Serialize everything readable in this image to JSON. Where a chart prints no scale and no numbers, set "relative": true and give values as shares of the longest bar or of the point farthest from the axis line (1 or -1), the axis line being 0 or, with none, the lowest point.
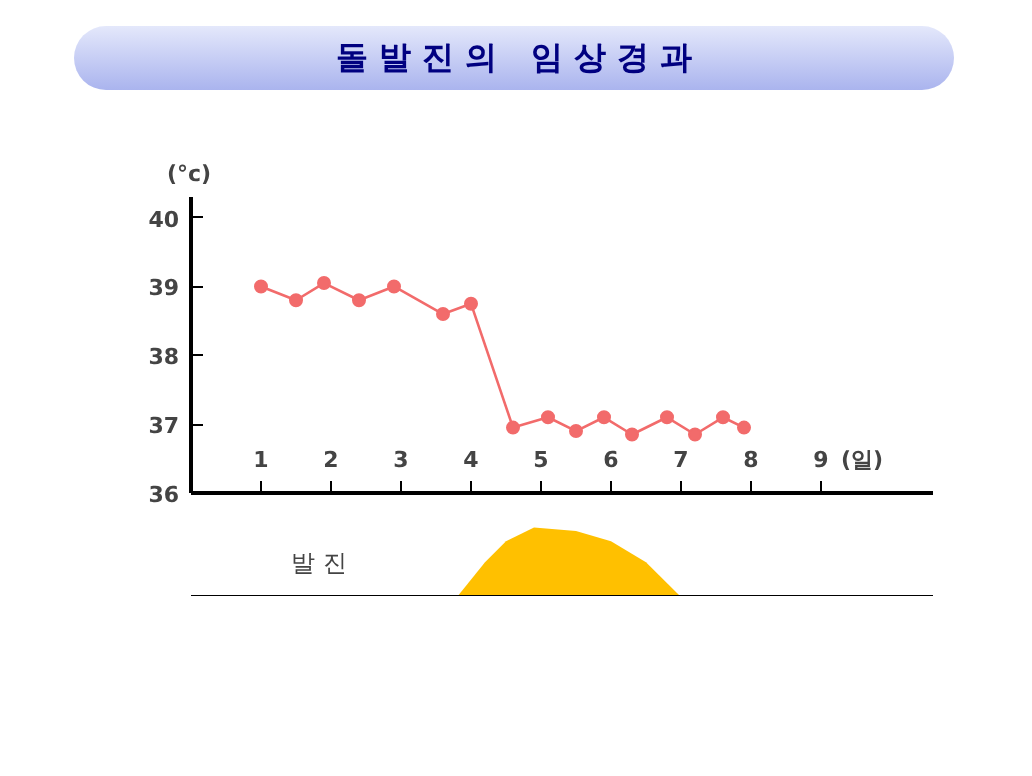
{
  "chart_data": [
    {
      "type": "line",
      "title": "돌 발 진 의   임 상 경 과",
      "ylabel": "(°c)",
      "xlabel": "(일)",
      "xlim": [
        0,
        10.6
      ],
      "ylim": [
        36,
        40.3
      ],
      "xticks": [
        1,
        2,
        3,
        4,
        5,
        6,
        7,
        8,
        9
      ],
      "yticks": [
        36,
        37,
        38,
        39,
        40
      ],
      "grid": false,
      "marker": "circle",
      "series": [
        {
          "color": "#f26b6b",
          "x": [
            1,
            1.5,
            1.9,
            2.4,
            2.9,
            3.6,
            4.0,
            4.6,
            5.1,
            5.5,
            5.9,
            6.3,
            6.8,
            7.2,
            7.6,
            7.9
          ],
          "values": [
            39.0,
            38.8,
            39.05,
            38.8,
            39.0,
            38.6,
            38.75,
            36.95,
            37.1,
            36.9,
            37.1,
            36.85,
            37.1,
            36.85,
            37.1,
            36.95
          ]
        }
      ]
    },
    {
      "type": "area",
      "relative": true,
      "ylabel": "발 진",
      "xlim": [
        0,
        10.6
      ],
      "series": [
        {
          "color": "#ffc000",
          "x": [
            3.8,
            4.2,
            4.5,
            4.9,
            5.5,
            6.0,
            6.5,
            7.0
          ],
          "values": [
            0,
            0.5,
            0.8,
            1,
            0.95,
            0.8,
            0.5,
            0
          ]
        }
      ]
    }
  ]
}
